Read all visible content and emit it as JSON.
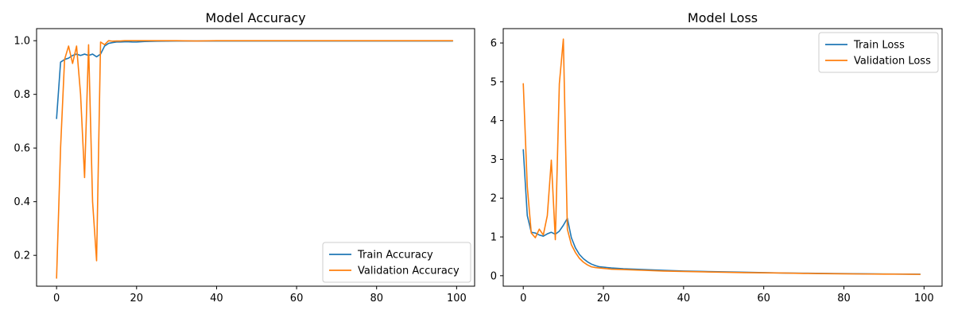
{
  "chart_data": [
    {
      "type": "line",
      "title": "Model Accuracy",
      "xlabel": "",
      "ylabel": "",
      "xlim": [
        -5,
        104.5
      ],
      "ylim": [
        0.085,
        1.045
      ],
      "xticks": [
        0,
        20,
        40,
        60,
        80,
        100
      ],
      "yticks": [
        0.2,
        0.4,
        0.6,
        0.8,
        1.0
      ],
      "ytick_labels": [
        "0.2",
        "0.4",
        "0.6",
        "0.8",
        "1.0"
      ],
      "grid": false,
      "legend": "lower-right",
      "series": [
        {
          "name": "Train Accuracy",
          "color": "#1f77b4",
          "x": [
            0,
            1,
            2,
            3,
            4,
            5,
            6,
            7,
            8,
            9,
            10,
            11,
            12,
            13,
            14,
            15,
            16,
            17,
            18,
            19,
            20,
            22,
            25,
            30,
            35,
            40,
            45,
            50,
            55,
            60,
            65,
            70,
            75,
            80,
            85,
            90,
            95,
            99
          ],
          "y": [
            0.71,
            0.92,
            0.93,
            0.935,
            0.945,
            0.95,
            0.945,
            0.95,
            0.945,
            0.95,
            0.94,
            0.95,
            0.98,
            0.99,
            0.993,
            0.995,
            0.995,
            0.996,
            0.996,
            0.995,
            0.995,
            0.997,
            0.998,
            0.999,
            0.999,
            0.999,
            0.999,
            0.999,
            0.999,
            0.999,
            0.999,
            0.999,
            0.999,
            0.999,
            0.999,
            0.999,
            0.999,
            0.999
          ]
        },
        {
          "name": "Validation Accuracy",
          "color": "#ff7f0e",
          "x": [
            0,
            1,
            2,
            3,
            4,
            5,
            6,
            7,
            8,
            9,
            10,
            11,
            12,
            13,
            14,
            15,
            16,
            17,
            18,
            19,
            20,
            22,
            25,
            30,
            35,
            40,
            45,
            50,
            55,
            60,
            65,
            70,
            75,
            80,
            85,
            90,
            95,
            99
          ],
          "y": [
            0.115,
            0.6,
            0.93,
            0.98,
            0.915,
            0.98,
            0.8,
            0.49,
            0.985,
            0.4,
            0.18,
            0.995,
            0.985,
            1.0,
            0.998,
            0.999,
            0.999,
            1.0,
            1.0,
            1.0,
            1.0,
            1.0,
            1.0,
            1.0,
            0.999,
            1.0,
            1.0,
            1.0,
            1.0,
            1.0,
            1.0,
            1.0,
            1.0,
            1.0,
            1.0,
            1.0,
            1.0,
            1.0
          ]
        }
      ]
    },
    {
      "type": "line",
      "title": "Model Loss",
      "xlabel": "",
      "ylabel": "",
      "xlim": [
        -5,
        104.5
      ],
      "ylim": [
        -0.27,
        6.37
      ],
      "xticks": [
        0,
        20,
        40,
        60,
        80,
        100
      ],
      "yticks": [
        0,
        1,
        2,
        3,
        4,
        5,
        6
      ],
      "ytick_labels": [
        "0",
        "1",
        "2",
        "3",
        "4",
        "5",
        "6"
      ],
      "grid": false,
      "legend": "upper-right",
      "series": [
        {
          "name": "Train Loss",
          "color": "#1f77b4",
          "x": [
            0,
            1,
            2,
            3,
            4,
            5,
            6,
            7,
            8,
            9,
            10,
            11,
            12,
            13,
            14,
            15,
            16,
            17,
            18,
            19,
            20,
            22,
            25,
            30,
            35,
            40,
            45,
            50,
            55,
            60,
            65,
            70,
            75,
            80,
            85,
            90,
            95,
            99
          ],
          "y": [
            3.25,
            1.55,
            1.12,
            1.1,
            1.05,
            1.02,
            1.08,
            1.12,
            1.07,
            1.15,
            1.3,
            1.48,
            0.98,
            0.72,
            0.55,
            0.44,
            0.36,
            0.3,
            0.26,
            0.23,
            0.22,
            0.2,
            0.18,
            0.16,
            0.14,
            0.12,
            0.11,
            0.1,
            0.09,
            0.08,
            0.07,
            0.065,
            0.06,
            0.055,
            0.05,
            0.045,
            0.042,
            0.04
          ]
        },
        {
          "name": "Validation Loss",
          "color": "#ff7f0e",
          "x": [
            0,
            1,
            2,
            3,
            4,
            5,
            6,
            7,
            8,
            9,
            10,
            11,
            12,
            13,
            14,
            15,
            16,
            17,
            18,
            19,
            20,
            22,
            25,
            30,
            35,
            40,
            45,
            50,
            55,
            60,
            65,
            70,
            75,
            80,
            85,
            90,
            95,
            99
          ],
          "y": [
            4.95,
            2.3,
            1.1,
            0.98,
            1.2,
            1.05,
            1.55,
            2.98,
            0.93,
            4.95,
            6.1,
            1.2,
            0.8,
            0.6,
            0.45,
            0.35,
            0.28,
            0.23,
            0.21,
            0.2,
            0.19,
            0.17,
            0.16,
            0.14,
            0.12,
            0.11,
            0.1,
            0.09,
            0.08,
            0.075,
            0.07,
            0.06,
            0.055,
            0.05,
            0.045,
            0.042,
            0.04,
            0.035
          ]
        }
      ]
    }
  ]
}
